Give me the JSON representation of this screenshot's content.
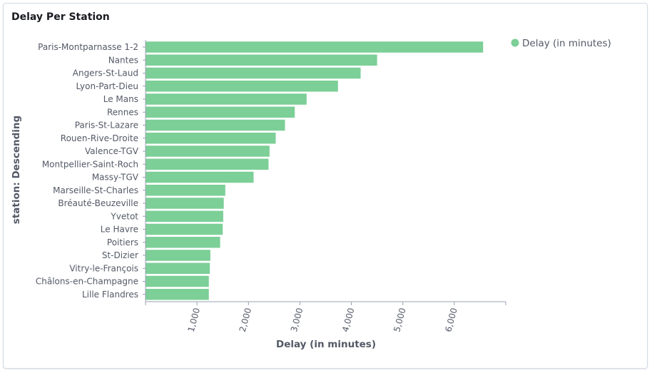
{
  "panel": {
    "title": "Delay Per Station"
  },
  "chart_data": {
    "type": "bar",
    "orientation": "horizontal",
    "xlabel": "Delay (in minutes)",
    "ylabel": "station: Descending",
    "xlim": [
      0,
      7000
    ],
    "x_ticks": [
      1000,
      2000,
      3000,
      4000,
      5000,
      6000
    ],
    "x_tick_labels": [
      "1,000",
      "2,000",
      "3,000",
      "4,000",
      "5,000",
      "6,000"
    ],
    "categories": [
      "Paris-Montparnasse 1-2",
      "Nantes",
      "Angers-St-Laud",
      "Lyon-Part-Dieu",
      "Le Mans",
      "Rennes",
      "Paris-St-Lazare",
      "Rouen-Rive-Droite",
      "Valence-TGV",
      "Montpellier-Saint-Roch",
      "Massy-TGV",
      "Marseille-St-Charles",
      "Bréauté-Beuzeville",
      "Yvetot",
      "Le Havre",
      "Poitiers",
      "St-Dizier",
      "Vitry-le-François",
      "Châlons-en-Champagne",
      "Lille Flandres"
    ],
    "series": [
      {
        "name": "Delay (in minutes)",
        "color": "#7ccf97",
        "values": [
          6560,
          4500,
          4180,
          3740,
          3130,
          2900,
          2710,
          2530,
          2410,
          2390,
          2100,
          1550,
          1520,
          1510,
          1500,
          1450,
          1260,
          1250,
          1230,
          1230
        ]
      }
    ],
    "legend": {
      "position": "top-right",
      "entries": [
        "Delay (in minutes)"
      ]
    },
    "grid": false
  }
}
